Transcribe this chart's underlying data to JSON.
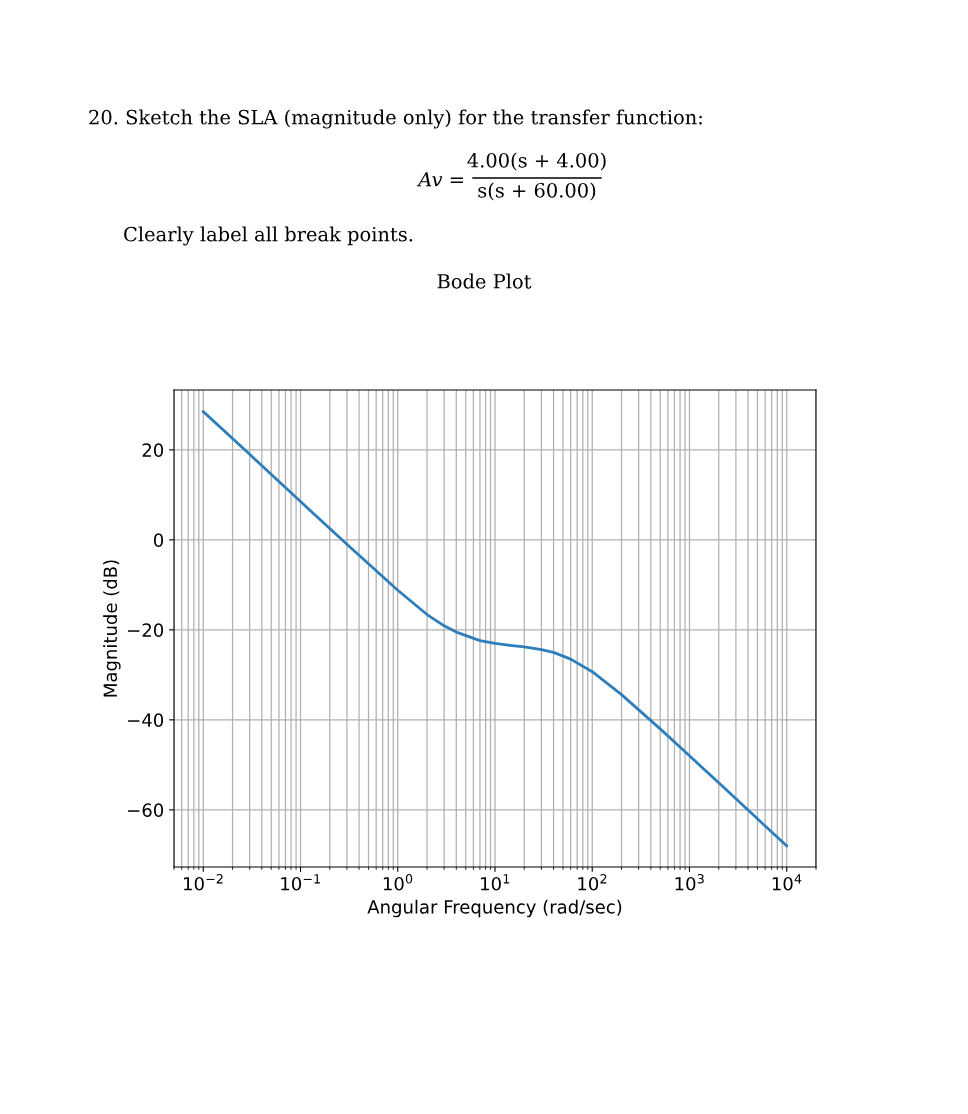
{
  "chart_data": {
    "type": "line",
    "title": "Bode Plot",
    "xlabel": "Angular Frequency (rad/sec)",
    "ylabel": "Magnitude (dB)",
    "annotations": [
      "20. Sketch the SLA (magnitude only) for the transfer function:",
      "Av =",
      "4.00(s + 4.00)",
      "s(s + 60.00)",
      "Clearly label all break points."
    ],
    "log": "x",
    "grid": true,
    "xlim": [
      0.005,
      20000
    ],
    "ylim": [
      -72.7,
      33.3
    ],
    "xticks": [
      {
        "value": 0.01,
        "label": "10$^{−2}$"
      },
      {
        "value": 0.1,
        "label": "10$^{−1}$"
      },
      {
        "value": 1,
        "label": "10$^{0}$"
      },
      {
        "value": 10,
        "label": "10$^{1}$"
      },
      {
        "value": 100,
        "label": "10$^{2}$"
      },
      {
        "value": 1000,
        "label": "10$^{3}$"
      },
      {
        "value": 10000,
        "label": "10$^{4}$"
      }
    ],
    "yticks": [
      {
        "value": -60,
        "label": "−60"
      },
      {
        "value": -40,
        "label": "−40"
      },
      {
        "value": -20,
        "label": "−20"
      },
      0,
      20
    ],
    "series": [
      {
        "color": "#2e7ebc",
        "x": [
          0.01,
          0.03,
          0.1,
          0.3,
          1,
          2,
          3,
          4,
          7,
          10,
          15,
          20,
          30,
          40,
          60,
          100,
          200,
          500,
          1000,
          2000,
          5000,
          10000
        ],
        "values": [
          28.5,
          19.0,
          8.5,
          -1.0,
          -11.2,
          -16.6,
          -19.1,
          -20.5,
          -22.4,
          -23.0,
          -23.5,
          -23.8,
          -24.4,
          -25.0,
          -26.5,
          -29.3,
          -34.4,
          -42.0,
          -48.0,
          -54.0,
          -62.0,
          -68.0
        ]
      }
    ]
  }
}
